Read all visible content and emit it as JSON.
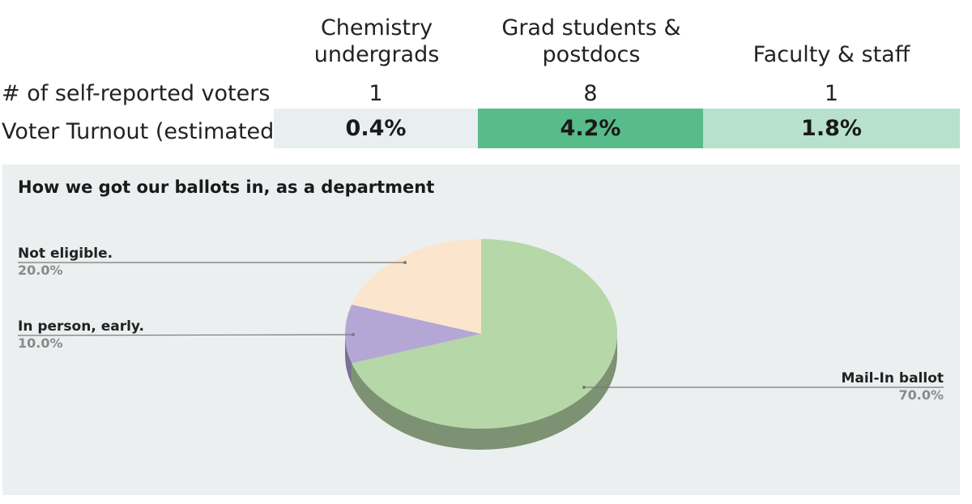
{
  "table": {
    "columns": [
      "Chemistry undergrads",
      "Grad students & postdocs",
      "Faculty & staff"
    ],
    "row_labels": [
      "# of self-reported voters",
      "Voter Turnout (estimated)"
    ],
    "voters": [
      "1",
      "8",
      "1"
    ],
    "turnout": [
      "0.4%",
      "4.2%",
      "1.8%"
    ],
    "colors": [
      "#e9eef0",
      "#57bb8a",
      "#b7e1cd"
    ]
  },
  "chart_data": {
    "type": "pie",
    "title": "How we got our ballots in, as a department",
    "slices": [
      {
        "label": "Mail-In ballot",
        "value": 70.0,
        "pct": "70.0%",
        "color": "#b6d7a8"
      },
      {
        "label": "In person, early.",
        "value": 10.0,
        "pct": "10.0%",
        "color": "#b4a7d6"
      },
      {
        "label": "Not eligible.",
        "value": 20.0,
        "pct": "20.0%",
        "color": "#fce5cd"
      }
    ],
    "style": "3d"
  }
}
